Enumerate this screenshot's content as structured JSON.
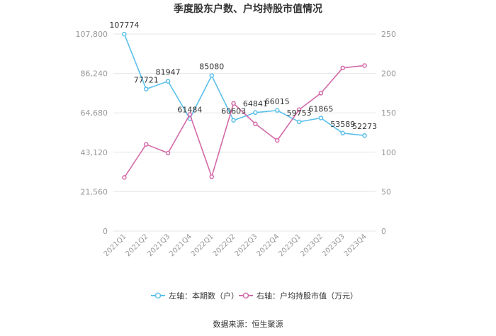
{
  "chart_data": {
    "type": "line",
    "title": "季度股东户数、户均持股市值情况",
    "categories": [
      "2021Q1",
      "2021Q2",
      "2021Q3",
      "2021Q4",
      "2022Q1",
      "2022Q2",
      "2022Q3",
      "2022Q4",
      "2023Q1",
      "2023Q2",
      "2023Q3",
      "2023Q4"
    ],
    "left_axis": {
      "min": 0,
      "max": 107800,
      "ticks": [
        "0",
        "21,560",
        "43,120",
        "64,680",
        "86,240",
        "107,800"
      ]
    },
    "right_axis": {
      "min": 0,
      "max": 250,
      "ticks": [
        "0",
        "50",
        "100",
        "150",
        "200",
        "250"
      ]
    },
    "series": [
      {
        "name": "左轴：本期数（户）",
        "axis": "left",
        "color": "#5bc0eb",
        "values": [
          107774,
          77721,
          81947,
          61484,
          85080,
          60603,
          64841,
          66015,
          59753,
          61865,
          53589,
          52273
        ],
        "labels": [
          "107774",
          "77721",
          "81947",
          "61484",
          "85080",
          "60603",
          "64841",
          "66015",
          "59753",
          "61865",
          "53589",
          "52273"
        ]
      },
      {
        "name": "右轴：户均持股市值（万元）",
        "axis": "right",
        "color": "#d46aa8",
        "values": [
          68,
          110,
          99,
          148,
          69,
          162,
          136,
          115,
          154,
          175,
          207,
          210
        ]
      }
    ],
    "legend_position": "bottom",
    "grid": true
  },
  "footer": {
    "source": "数据来源：恒生聚源"
  }
}
